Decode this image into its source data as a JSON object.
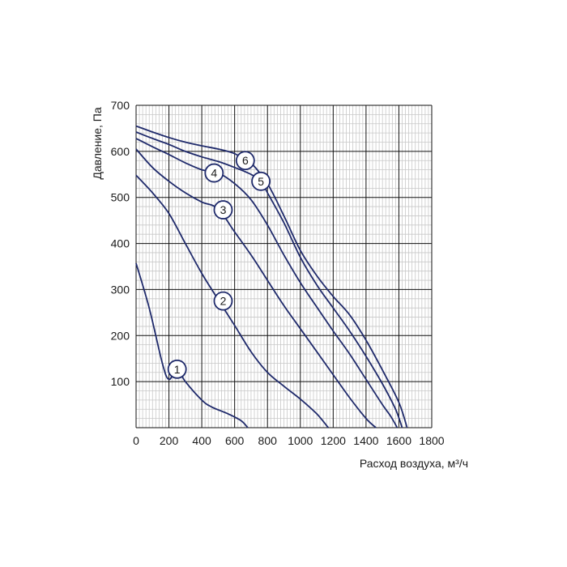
{
  "chart_data": {
    "type": "line",
    "xlabel": "Расход воздуха, м³/ч",
    "ylabel": "Давление, Па",
    "xlim": [
      0,
      1800
    ],
    "ylim": [
      0,
      700
    ],
    "x_ticks": [
      "0",
      "200",
      "400",
      "600",
      "800",
      "1000",
      "1200",
      "1400",
      "1600",
      "1800"
    ],
    "y_ticks": [
      "100",
      "200",
      "300",
      "400",
      "500",
      "600",
      "700"
    ],
    "grid": true,
    "minor_grid": true,
    "line_color": "#1f2a6b",
    "grid_major_color": "#111111",
    "grid_minor_color": "#c8c8c8",
    "series": [
      {
        "label": "1",
        "label_at": [
          250,
          127
        ],
        "x": [
          0,
          80,
          160,
          200,
          250,
          300,
          400,
          460,
          560,
          640,
          680
        ],
        "y": [
          357,
          260,
          140,
          105,
          127,
          100,
          60,
          45,
          30,
          15,
          0
        ]
      },
      {
        "label": "2",
        "label_at": [
          530,
          275
        ],
        "x": [
          0,
          100,
          200,
          300,
          400,
          500,
          600,
          700,
          800,
          900,
          1000,
          1100,
          1170
        ],
        "y": [
          548,
          510,
          465,
          400,
          335,
          278,
          222,
          165,
          120,
          90,
          62,
          30,
          0
        ]
      },
      {
        "label": "3",
        "label_at": [
          530,
          473
        ],
        "x": [
          0,
          100,
          200,
          300,
          400,
          500,
          600,
          700,
          800,
          900,
          1000,
          1100,
          1200,
          1300,
          1400,
          1460
        ],
        "y": [
          605,
          565,
          535,
          510,
          490,
          475,
          425,
          375,
          320,
          265,
          215,
          165,
          115,
          65,
          20,
          0
        ]
      },
      {
        "label": "4",
        "label_at": [
          475,
          553
        ],
        "x": [
          0,
          100,
          200,
          300,
          400,
          500,
          600,
          700,
          800,
          900,
          1000,
          1100,
          1200,
          1300,
          1400,
          1500,
          1550,
          1590
        ],
        "y": [
          628,
          610,
          593,
          575,
          560,
          553,
          530,
          495,
          440,
          375,
          315,
          262,
          210,
          160,
          105,
          50,
          25,
          0
        ]
      },
      {
        "label": "5",
        "label_at": [
          760,
          535
        ],
        "x": [
          0,
          100,
          200,
          300,
          400,
          500,
          600,
          700,
          760,
          800,
          900,
          1000,
          1100,
          1200,
          1300,
          1400,
          1500,
          1580,
          1620
        ],
        "y": [
          642,
          628,
          615,
          600,
          588,
          578,
          565,
          550,
          535,
          510,
          445,
          370,
          310,
          260,
          210,
          155,
          95,
          40,
          0
        ]
      },
      {
        "label": "6",
        "label_at": [
          665,
          580
        ],
        "x": [
          0,
          100,
          200,
          300,
          400,
          500,
          600,
          665,
          700,
          800,
          900,
          1000,
          1100,
          1200,
          1300,
          1400,
          1500,
          1600,
          1650
        ],
        "y": [
          655,
          642,
          630,
          620,
          612,
          605,
          595,
          580,
          575,
          530,
          460,
          385,
          330,
          285,
          245,
          190,
          125,
          55,
          0
        ]
      }
    ]
  }
}
